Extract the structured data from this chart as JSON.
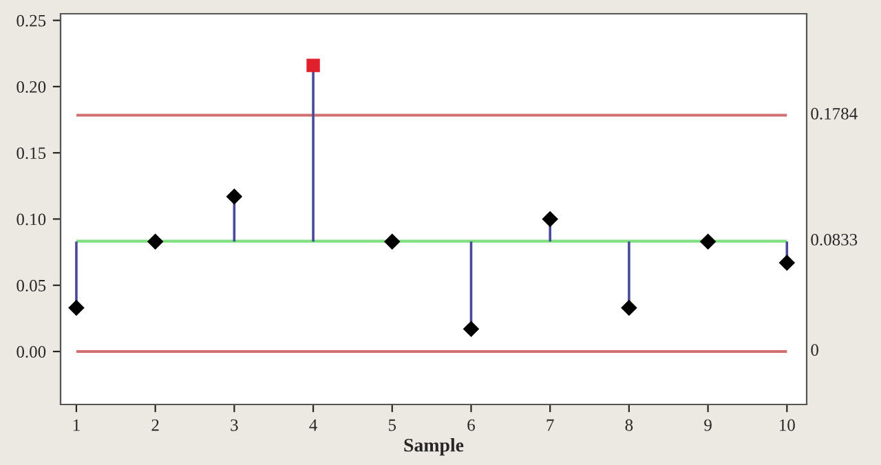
{
  "chart_data": {
    "type": "lollipop",
    "xlabel": "Sample",
    "x": [
      1,
      2,
      3,
      4,
      5,
      6,
      7,
      8,
      9,
      10
    ],
    "series": [
      {
        "color": "#000000",
        "marker": "diamond",
        "values": [
          0.033,
          0.083,
          0.117,
          null,
          0.083,
          0.017,
          0.1,
          0.033,
          0.083,
          0.067
        ],
        "errors": [
          [
            0.033,
            0.083
          ],
          null,
          [
            0.083,
            0.117
          ],
          null,
          null,
          [
            0.017,
            0.083
          ],
          [
            0.083,
            0.1
          ],
          [
            0.033,
            0.083
          ],
          null,
          [
            0.067,
            0.083
          ]
        ]
      },
      {
        "color": "#e0202a",
        "marker": "square",
        "values": [
          null,
          null,
          null,
          0.216,
          null,
          null,
          null,
          null,
          null,
          null
        ],
        "errors": [
          null,
          null,
          null,
          [
            0.083,
            0.216
          ],
          null,
          null,
          null,
          null,
          null,
          null
        ]
      }
    ],
    "ref_lines": [
      {
        "axis": "y",
        "value": 0.1784,
        "label": "0.1784",
        "color": "#d07070"
      },
      {
        "axis": "y",
        "value": 0.0833,
        "label": "0.0833",
        "color": "#80e080"
      },
      {
        "axis": "y",
        "value": 0,
        "label": "0",
        "color": "#d07070"
      }
    ],
    "xlim": [
      0.8,
      10.25
    ],
    "ylim": [
      -0.04,
      0.255
    ],
    "xticks": [
      1,
      2,
      3,
      4,
      5,
      6,
      7,
      8,
      9,
      10
    ],
    "yticks": [
      {
        "value": 0,
        "label": "0.00"
      },
      {
        "value": 0.05,
        "label": "0.05"
      },
      {
        "value": 0.1,
        "label": "0.10"
      },
      {
        "value": 0.15,
        "label": "0.15"
      },
      {
        "value": 0.2,
        "label": "0.20"
      },
      {
        "value": 0.25,
        "label": "0.25"
      }
    ],
    "grid": false
  }
}
